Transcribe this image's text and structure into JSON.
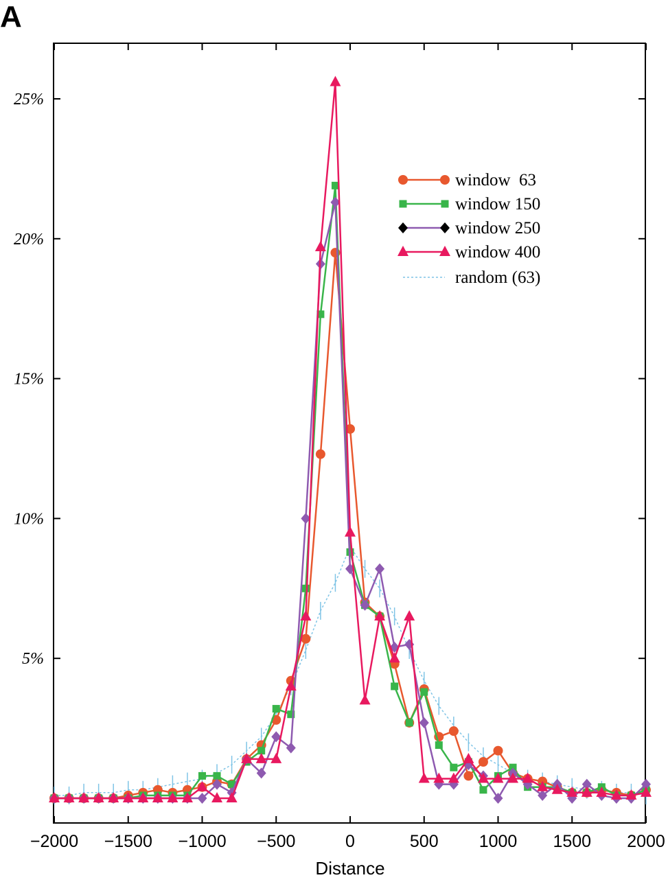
{
  "panel_label": "A",
  "chart_data": {
    "type": "line",
    "title": "",
    "xlabel": "Distance",
    "ylabel": "",
    "xlim": [
      -2000,
      2000
    ],
    "ylim": [
      0,
      27
    ],
    "x_ticks": [
      -2000,
      -1500,
      -1000,
      -500,
      0,
      500,
      1000,
      1500,
      2000
    ],
    "x_tick_labels": [
      "−2000",
      "−1500",
      "−1000",
      "−500",
      "0",
      "500",
      "1000",
      "1500",
      "2000"
    ],
    "y_ticks": [
      5,
      10,
      15,
      20,
      25
    ],
    "y_tick_labels": [
      "5%",
      "10%",
      "15%",
      "20%",
      "25%"
    ],
    "legend_position": "top-right",
    "x": [
      -2000,
      -1900,
      -1800,
      -1700,
      -1600,
      -1500,
      -1400,
      -1300,
      -1200,
      -1100,
      -1000,
      -900,
      -800,
      -700,
      -600,
      -500,
      -400,
      -300,
      -200,
      -100,
      0,
      100,
      200,
      300,
      400,
      500,
      600,
      700,
      800,
      900,
      1000,
      1100,
      1200,
      1300,
      1400,
      1500,
      1600,
      1700,
      1800,
      1900,
      2000
    ],
    "series": [
      {
        "name": "window  63",
        "color": "#e8582e",
        "marker": "circle",
        "values": [
          0,
          0,
          0,
          0,
          0,
          0.1,
          0.2,
          0.3,
          0.2,
          0.3,
          0.4,
          0.6,
          0.5,
          1.4,
          1.9,
          2.8,
          4.2,
          5.7,
          12.3,
          19.5,
          13.2,
          7.0,
          6.5,
          4.8,
          2.7,
          3.9,
          2.2,
          2.4,
          0.8,
          1.3,
          1.7,
          0.9,
          0.7,
          0.6,
          0.4,
          0.2,
          0.2,
          0.3,
          0.2,
          0.1,
          0.3
        ]
      },
      {
        "name": "window 150",
        "color": "#39b54a",
        "marker": "square",
        "values": [
          0,
          0,
          0,
          0,
          0,
          0,
          0.1,
          0.1,
          0.1,
          0.1,
          0.8,
          0.8,
          0.5,
          1.3,
          1.7,
          3.2,
          3.0,
          7.5,
          17.3,
          21.9,
          8.8,
          6.9,
          6.5,
          4.0,
          2.7,
          3.8,
          1.9,
          1.1,
          1.3,
          0.3,
          0.8,
          1.1,
          0.4,
          0.4,
          0.4,
          0.2,
          0.2,
          0.4,
          0.1,
          0.1,
          0.3
        ]
      },
      {
        "name": "window 250",
        "color": "#8e5ab0",
        "marker": "diamond",
        "values": [
          0,
          0,
          0,
          0,
          0,
          0,
          0,
          0,
          0,
          0,
          0,
          0.5,
          0.2,
          1.4,
          0.9,
          2.2,
          1.8,
          10.0,
          19.1,
          21.3,
          8.2,
          6.9,
          8.2,
          5.4,
          5.5,
          2.7,
          0.5,
          0.5,
          1.2,
          0.8,
          0,
          0.9,
          0.5,
          0.1,
          0.5,
          0,
          0.5,
          0.1,
          0,
          0,
          0.5
        ]
      },
      {
        "name": "window 400",
        "color": "#e8195f",
        "marker": "triangle",
        "values": [
          0,
          0,
          0,
          0,
          0,
          0,
          0,
          0,
          0,
          0,
          0.4,
          0,
          0,
          1.4,
          1.4,
          1.4,
          4.0,
          6.5,
          19.7,
          25.6,
          9.5,
          3.5,
          6.5,
          5.0,
          6.5,
          0.7,
          0.7,
          0.7,
          1.4,
          0.7,
          0.7,
          0.7,
          0.7,
          0.4,
          0.3,
          0.2,
          0.2,
          0.2,
          0.1,
          0.1,
          0.2
        ]
      },
      {
        "name": "random (63)",
        "color": "#7fc4e6",
        "marker": "vbar",
        "values": [
          0.1,
          0.1,
          0.2,
          0.2,
          0.2,
          0.3,
          0.3,
          0.4,
          0.5,
          0.6,
          0.7,
          0.9,
          1.2,
          1.7,
          2.2,
          3.0,
          4.0,
          5.3,
          6.7,
          7.7,
          9.0,
          8.2,
          7.5,
          6.5,
          5.3,
          4.2,
          3.3,
          2.6,
          2.0,
          1.5,
          1.2,
          0.9,
          0.7,
          0.6,
          0.5,
          0.4,
          0.3,
          0.3,
          0.2,
          0.2,
          0.1
        ]
      }
    ]
  }
}
